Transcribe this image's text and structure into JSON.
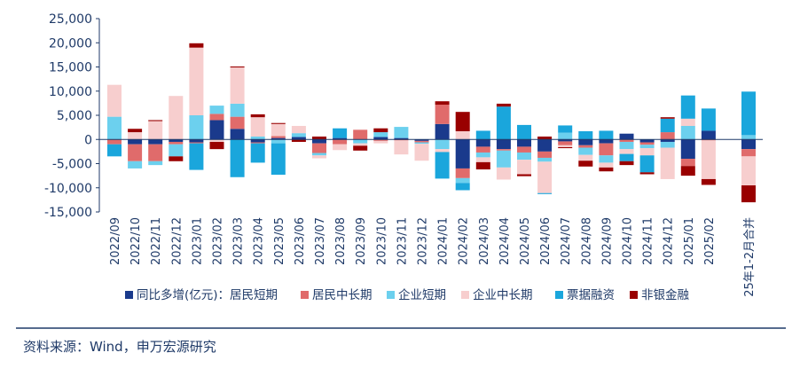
{
  "chart_data": {
    "type": "bar",
    "stacked": true,
    "categories": [
      "2022/09",
      "2022/10",
      "2022/11",
      "2022/12",
      "2023/01",
      "2023/02",
      "2023/03",
      "2023/04",
      "2023/05",
      "2023/06",
      "2023/07",
      "2023/08",
      "2023/09",
      "2023/10",
      "2023/11",
      "2023/12",
      "2024/01",
      "2024/02",
      "2024/03",
      "2024/04",
      "2024/05",
      "2024/06",
      "2024/07",
      "2024/08",
      "2024/09",
      "2024/10",
      "2024/11",
      "2024/12",
      "2025/01",
      "2025/02",
      "25年1-2月合并"
    ],
    "series": [
      {
        "name": "同比多增(亿元)：居民短期",
        "color": "#1a3a8c",
        "values": [
          0,
          -1000,
          -1000,
          -500,
          -600,
          4000,
          2200,
          -600,
          300,
          500,
          -800,
          300,
          0,
          500,
          300,
          -300,
          3200,
          -6000,
          -1500,
          -2000,
          -1500,
          -2500,
          -400,
          -1200,
          -800,
          1200,
          -600,
          -500,
          -4000,
          1800,
          -2000
        ]
      },
      {
        "name": "居民中长期",
        "color": "#e06b6b",
        "values": [
          -1000,
          -3500,
          -3500,
          -500,
          -200,
          1300,
          2500,
          -200,
          400,
          0,
          -2000,
          -1000,
          2000,
          -300,
          -200,
          -300,
          4000,
          -2000,
          -1200,
          -300,
          -1200,
          -1300,
          -800,
          -500,
          -2500,
          -500,
          -500,
          1500,
          -1500,
          -200,
          -1500
        ]
      },
      {
        "name": "企业短期",
        "color": "#6cd0ee",
        "values": [
          4700,
          -1500,
          -800,
          -2500,
          5000,
          1700,
          2700,
          600,
          -800,
          800,
          -500,
          0,
          -800,
          1000,
          2300,
          -300,
          -2000,
          -1000,
          -1000,
          -3500,
          -1500,
          -800,
          1400,
          -1500,
          -1500,
          -1500,
          -700,
          -1200,
          2800,
          0,
          900
        ]
      },
      {
        "name": "企业中长期",
        "color": "#f7cece",
        "values": [
          6600,
          1500,
          3800,
          9000,
          14000,
          -500,
          7500,
          4000,
          2500,
          1500,
          -600,
          -1200,
          -500,
          -500,
          -2900,
          -3500,
          -600,
          1700,
          -1000,
          -2500,
          -3000,
          -6500,
          -400,
          -1200,
          -1000,
          -1000,
          -1500,
          -6500,
          1500,
          -8000,
          -6000
        ]
      },
      {
        "name": "票据融资",
        "color": "#1aa6dc",
        "values": [
          -2500,
          0,
          0,
          0,
          -5500,
          0,
          -7800,
          -4000,
          -6500,
          0,
          0,
          2000,
          0,
          0,
          0,
          0,
          -5500,
          -1500,
          1800,
          6800,
          3000,
          -200,
          1500,
          1700,
          1800,
          -1500,
          -3500,
          2800,
          4800,
          4600,
          9000
        ]
      },
      {
        "name": "非银金融",
        "color": "#990000",
        "values": [
          0,
          700,
          200,
          -1000,
          900,
          -1500,
          200,
          600,
          200,
          -500,
          600,
          0,
          -1000,
          800,
          0,
          0,
          700,
          4000,
          -1500,
          600,
          -400,
          600,
          -200,
          -1200,
          -800,
          -800,
          -400,
          300,
          -2000,
          -1200,
          -3500
        ]
      }
    ],
    "ylim": [
      -15000,
      25000
    ],
    "yticks": [
      "25,000",
      "20,000",
      "15,000",
      "10,000",
      "5,000",
      "0",
      "-5,000",
      "-10,000",
      "-15,000"
    ],
    "legend_position": "bottom"
  },
  "source_note": "资料来源：Wind，申万宏源研究"
}
